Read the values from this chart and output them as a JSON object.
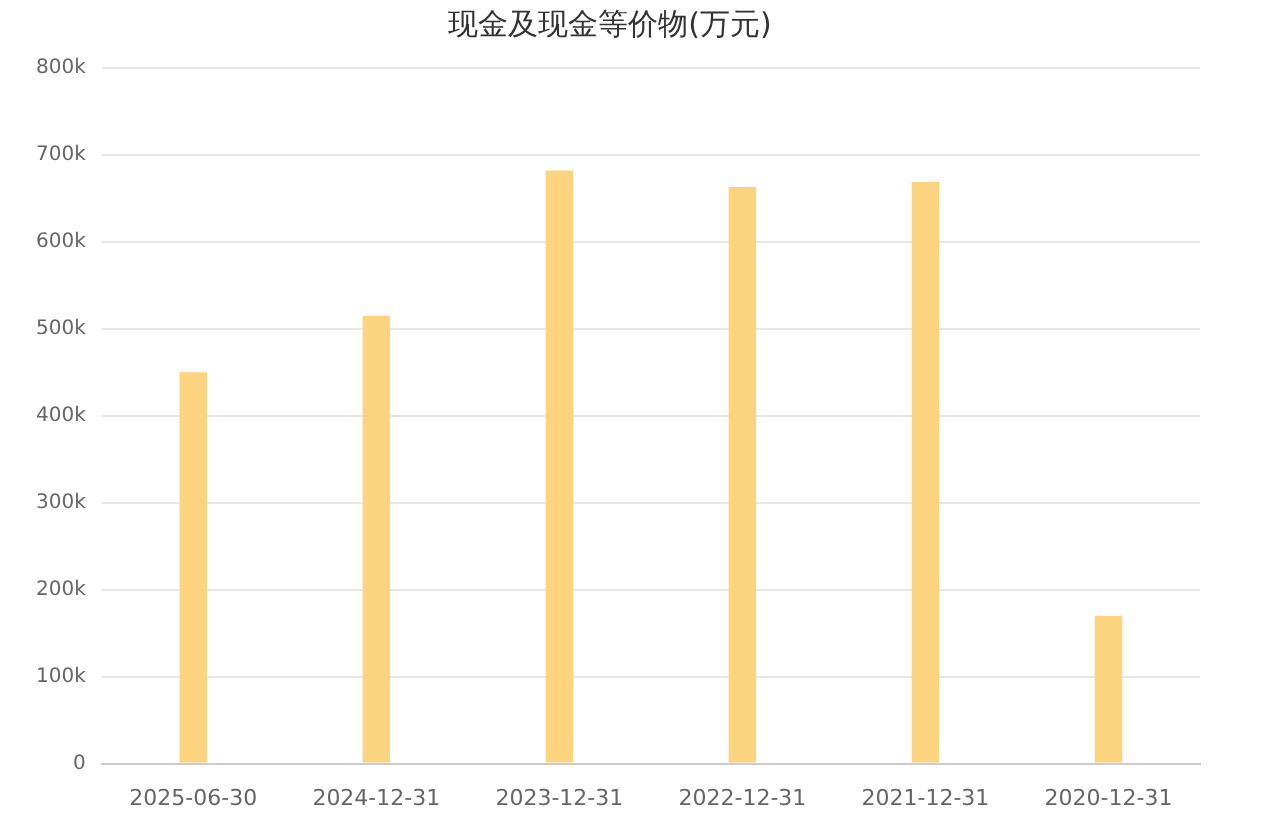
{
  "chart_data": {
    "type": "bar",
    "title": "现金及现金等价物(万元)",
    "categories": [
      "2025-06-30",
      "2024-12-31",
      "2023-12-31",
      "2022-12-31",
      "2021-12-31",
      "2020-12-31"
    ],
    "values": [
      450,
      515,
      682,
      663,
      669,
      170
    ],
    "color": "#fcd47f",
    "ylim": [
      0,
      800
    ],
    "yticks": [
      {
        "value": 0,
        "label": "0"
      },
      {
        "value": 100,
        "label": "100k"
      },
      {
        "value": 200,
        "label": "200k"
      },
      {
        "value": 300,
        "label": "300k"
      },
      {
        "value": 400,
        "label": "400k"
      },
      {
        "value": 500,
        "label": "500k"
      },
      {
        "value": 600,
        "label": "600k"
      },
      {
        "value": 700,
        "label": "700k"
      },
      {
        "value": 800,
        "label": "800k"
      }
    ],
    "grid": "y"
  }
}
